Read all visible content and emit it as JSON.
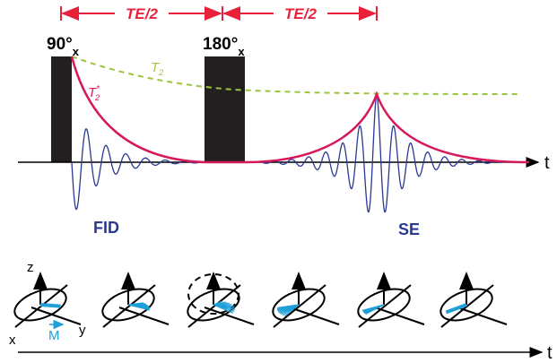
{
  "timing": {
    "labels": [
      "TE/2",
      "TE/2"
    ]
  },
  "pulses": [
    {
      "angle": "90°",
      "axis": "x"
    },
    {
      "angle": "180°",
      "axis": "x"
    }
  ],
  "curves": {
    "t2": {
      "symbol": "T",
      "subscript": "2"
    },
    "t2_star": {
      "symbol": "T",
      "subscript": "2",
      "superscript": "*"
    }
  },
  "time_axis_label": "t",
  "signals": [
    "FID",
    "SE"
  ],
  "vector_axes": {
    "z": "z",
    "x": "x",
    "y": "y",
    "m": "M"
  },
  "bottom_axis_label": "t"
}
